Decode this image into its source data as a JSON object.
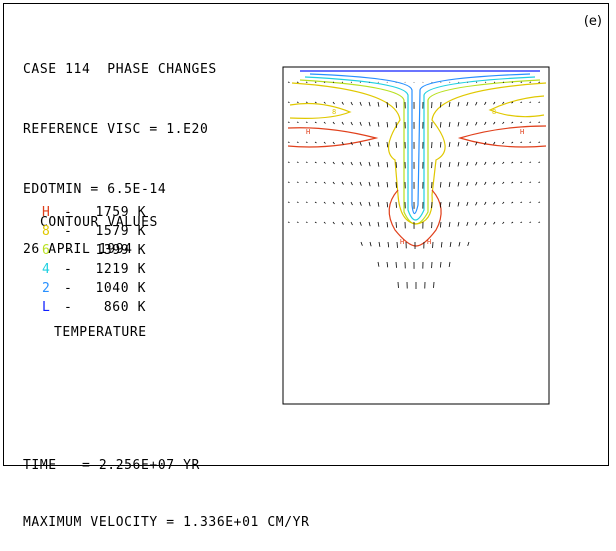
{
  "panel_label": "(e)",
  "header": {
    "line1": "CASE 114  PHASE CHANGES",
    "line2": "REFERENCE VISC = 1.E20",
    "line3": "EDOTMIN = 6.5E-14",
    "line4": "26 APRIL 1994"
  },
  "legend": {
    "title": "CONTOUR VALUES",
    "items": [
      {
        "label": "H",
        "value": "1759 K",
        "color": "#e0401c"
      },
      {
        "label": "8",
        "value": "1579 K",
        "color": "#e0c800"
      },
      {
        "label": "6",
        "value": "1399 K",
        "color": "#b8e020"
      },
      {
        "label": "4",
        "value": "1219 K",
        "color": "#20d0e0"
      },
      {
        "label": "2",
        "value": "1040 K",
        "color": "#2890ff"
      },
      {
        "label": "L",
        "value": "860 K",
        "color": "#1020ff"
      }
    ],
    "quantity": "TEMPERATURE"
  },
  "footer": {
    "time": "TIME   = 2.256E+07 YR",
    "max_velocity": "MAXIMUM VELOCITY = 1.336E+01 CM/YR"
  }
}
